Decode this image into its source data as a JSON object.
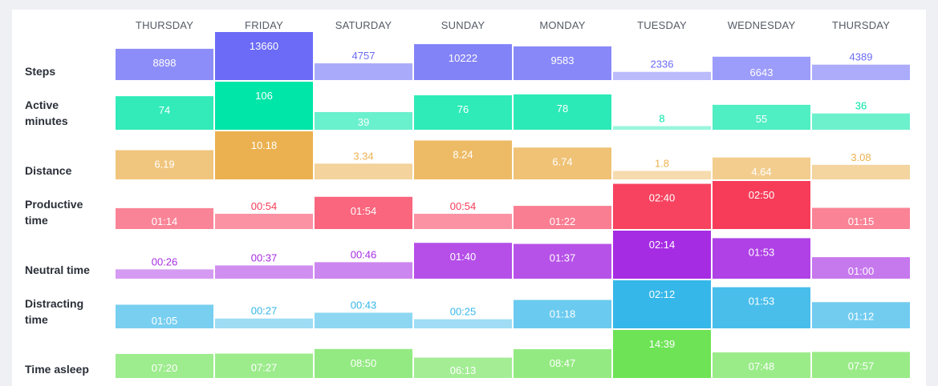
{
  "chart_data": {
    "type": "heatmap",
    "columns": [
      "THURSDAY",
      "FRIDAY",
      "SATURDAY",
      "SUNDAY",
      "MONDAY",
      "TUESDAY",
      "WEDNESDAY",
      "THURSDAY"
    ],
    "rows": [
      {
        "label": "Steps",
        "color": "#6b6bf7",
        "values": [
          8898,
          13660,
          4757,
          10222,
          9583,
          2336,
          6643,
          4389
        ],
        "labels": [
          "8898",
          "13660",
          "4757",
          "10222",
          "9583",
          "2336",
          "6643",
          "4389"
        ]
      },
      {
        "label": "Active minutes",
        "color": "#00e6a8",
        "values": [
          74,
          106,
          39,
          76,
          78,
          8,
          55,
          36
        ],
        "labels": [
          "74",
          "106",
          "39",
          "76",
          "78",
          "8",
          "55",
          "36"
        ]
      },
      {
        "label": "Distance",
        "color": "#ebb150",
        "values": [
          6.19,
          10.18,
          3.34,
          8.24,
          6.74,
          1.8,
          4.64,
          3.08
        ],
        "labels": [
          "6.19",
          "10.18",
          "3.34",
          "8.24",
          "6.74",
          "1.8",
          "4.64",
          "3.08"
        ]
      },
      {
        "label": "Productive time",
        "color": "#f73c5a",
        "values": [
          74,
          54,
          114,
          54,
          82,
          160,
          170,
          75
        ],
        "labels": [
          "01:14",
          "00:54",
          "01:54",
          "00:54",
          "01:22",
          "02:40",
          "02:50",
          "01:15"
        ]
      },
      {
        "label": "Neutral time",
        "color": "#a62ce3",
        "values": [
          26,
          37,
          46,
          100,
          97,
          134,
          113,
          60
        ],
        "labels": [
          "00:26",
          "00:37",
          "00:46",
          "01:40",
          "01:37",
          "02:14",
          "01:53",
          "01:00"
        ]
      },
      {
        "label": "Distracting time",
        "color": "#36b7e9",
        "values": [
          65,
          27,
          43,
          25,
          78,
          132,
          113,
          72
        ],
        "labels": [
          "01:05",
          "00:27",
          "00:43",
          "00:25",
          "01:18",
          "02:12",
          "01:53",
          "01:12"
        ]
      },
      {
        "label": "Time asleep",
        "color": "#6ee356",
        "values": [
          440,
          447,
          530,
          373,
          527,
          879,
          468,
          477
        ],
        "labels": [
          "07:20",
          "07:27",
          "08:50",
          "06:13",
          "08:47",
          "14:39",
          "07:48",
          "07:57"
        ]
      }
    ]
  }
}
